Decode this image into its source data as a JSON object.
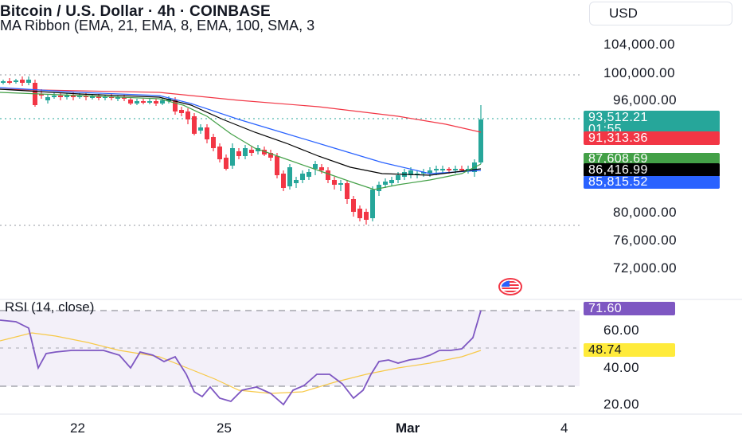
{
  "header": {
    "title": "Bitcoin / U.S. Dollar · 4h · COINBASE",
    "indicator": "MA Ribbon (EMA, 21, EMA, 8, EMA, 100, SMA, 3",
    "currency": "USD"
  },
  "price_axis": {
    "ticks": [
      "104,000.00",
      "100,000.00",
      "96,000.00",
      "80,000.00",
      "76,000.00",
      "72,000.00"
    ]
  },
  "price_tags": {
    "current": {
      "price": "93,512.21",
      "countdown": "01:55",
      "color": "#26a69a"
    },
    "ma_red": {
      "value": "91,313.36",
      "color": "#f23645"
    },
    "ma_green": {
      "value": "87,608.69",
      "color": "#43a047"
    },
    "ma_black": {
      "value": "86,416.99",
      "color": "#000000"
    },
    "ma_blue": {
      "value": "85,815.52",
      "color": "#2962ff"
    }
  },
  "rsi": {
    "title": "RSI (14, close)",
    "ticks": [
      "60.00",
      "40.00",
      "20.00"
    ],
    "value_tag": {
      "value": "71.60",
      "color": "#7e57c2"
    },
    "ma_tag": {
      "value": "48.74",
      "color": "#ffeb3b"
    }
  },
  "time_axis": {
    "labels": [
      "22",
      "25",
      "Mar",
      "4"
    ]
  },
  "icons": {
    "flag": "us-flag-icon"
  },
  "colors": {
    "up": "#26a69a",
    "down": "#f23645",
    "rsi_line": "#7e57c2",
    "rsi_ma": "#f7c948"
  }
}
